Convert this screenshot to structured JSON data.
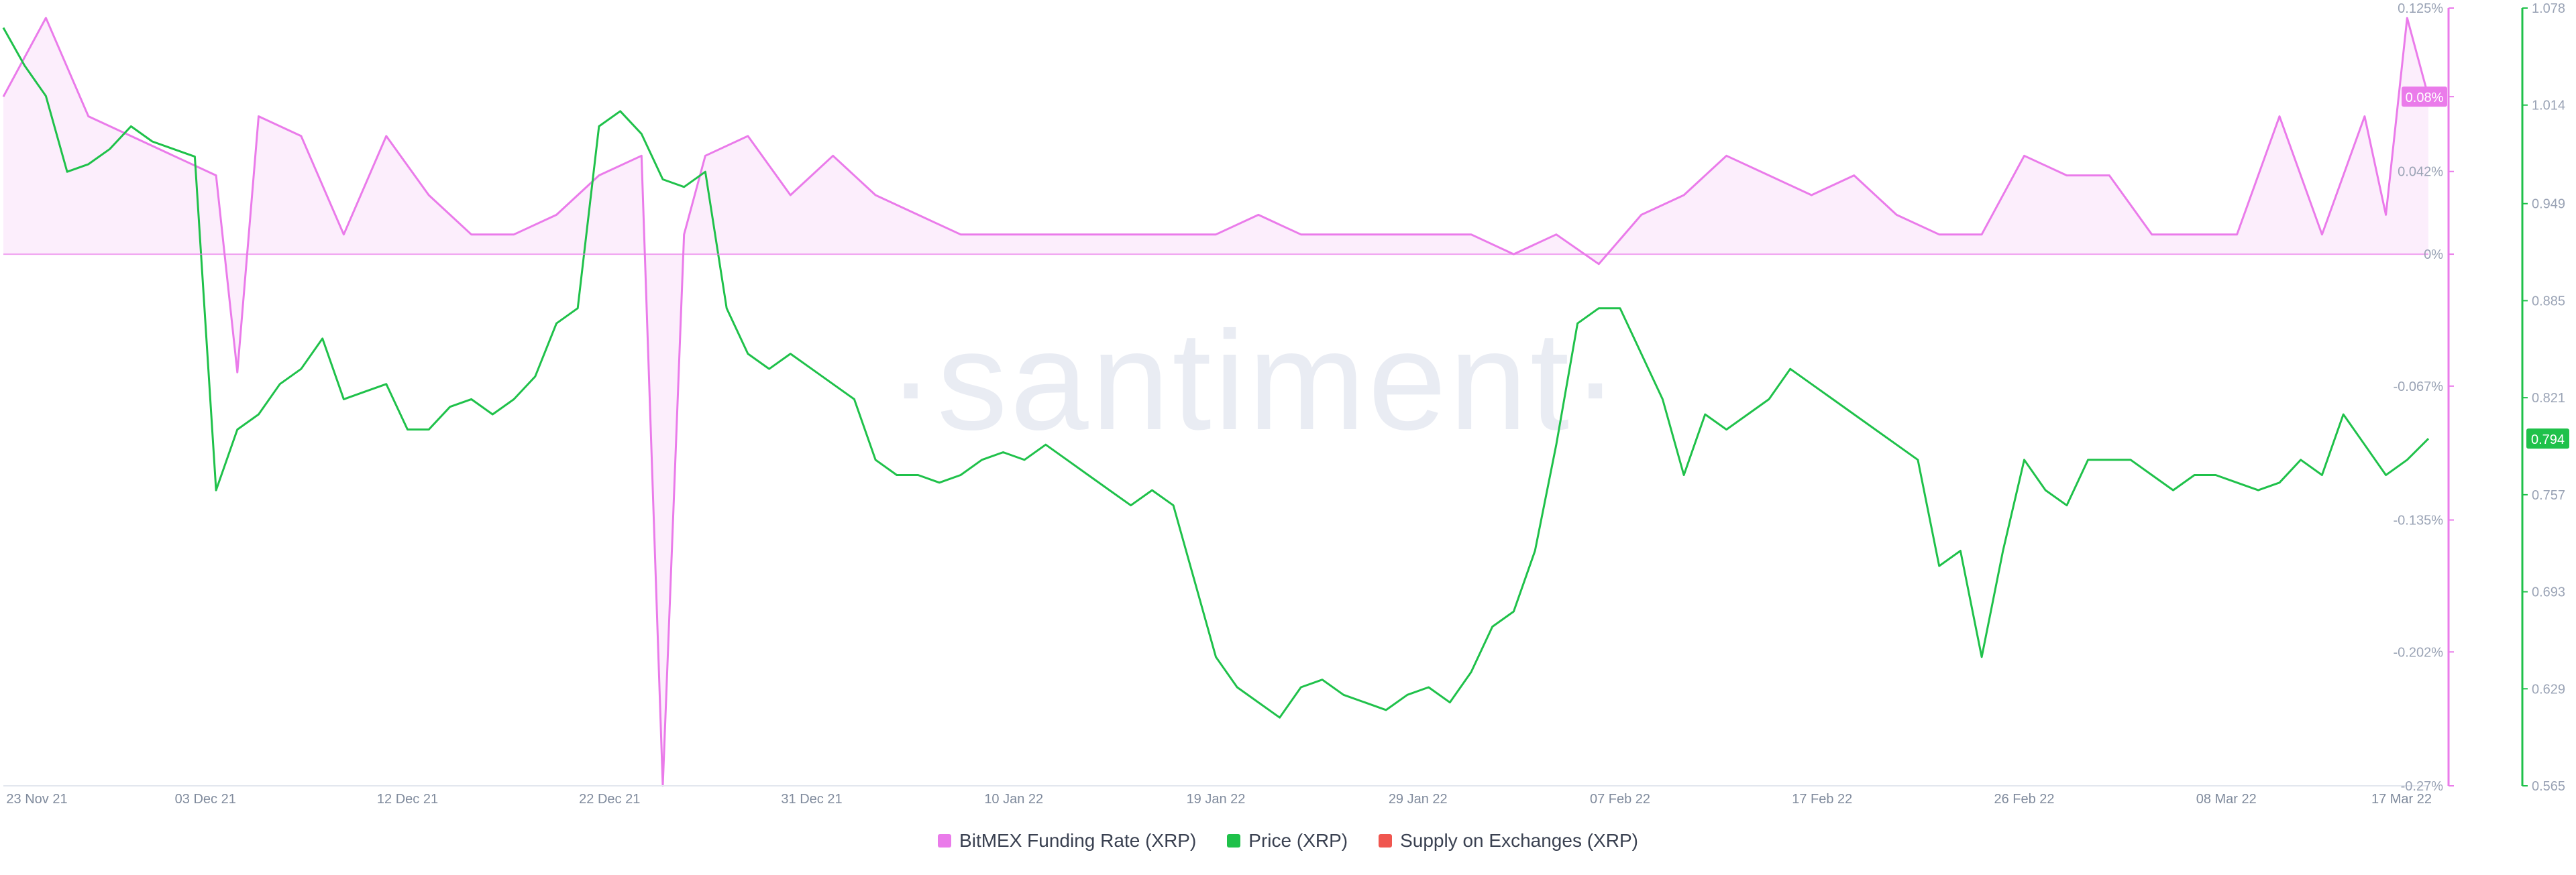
{
  "chart_data": {
    "type": "line",
    "x_tick_labels": [
      "23 Nov 21",
      "03 Dec 21",
      "12 Dec 21",
      "22 Dec 21",
      "31 Dec 21",
      "10 Jan 22",
      "19 Jan 22",
      "29 Jan 22",
      "07 Feb 22",
      "17 Feb 22",
      "26 Feb 22",
      "08 Mar 22",
      "17 Mar 22"
    ],
    "x_range": [
      "2021-11-23",
      "2022-03-17"
    ],
    "y_left": {
      "series": "BitMEX Funding Rate (XRP)",
      "ylim": [
        -0.27,
        0.125
      ],
      "tick_labels": [
        "0.125%",
        "0.08%",
        "0.042%",
        "0%",
        "-0.067%",
        "-0.135%",
        "-0.202%",
        "-0.27%"
      ],
      "color": "#ea7bea"
    },
    "y_right": {
      "series": "Price (XRP)",
      "ylim": [
        0.565,
        1.078
      ],
      "tick_labels": [
        "1.078",
        "1.014",
        "0.949",
        "0.885",
        "0.821",
        "0.757",
        "0.693",
        "0.629",
        "0.565"
      ],
      "color": "#1fc14a"
    },
    "current_values": {
      "funding_rate": "0.08%",
      "price": "0.794"
    },
    "series": [
      {
        "name": "BitMEX Funding Rate (XRP)",
        "axis": "left",
        "color": "#ea7bea",
        "style": "area",
        "x": [
          "2021-11-23",
          "2021-11-25",
          "2021-11-27",
          "2021-11-29",
          "2021-12-01",
          "2021-12-03",
          "2021-12-04",
          "2021-12-05",
          "2021-12-07",
          "2021-12-09",
          "2021-12-11",
          "2021-12-13",
          "2021-12-15",
          "2021-12-17",
          "2021-12-19",
          "2021-12-21",
          "2021-12-23",
          "2021-12-24",
          "2021-12-25",
          "2021-12-26",
          "2021-12-28",
          "2021-12-30",
          "2022-01-01",
          "2022-01-03",
          "2022-01-05",
          "2022-01-07",
          "2022-01-09",
          "2022-01-11",
          "2022-01-13",
          "2022-01-15",
          "2022-01-17",
          "2022-01-19",
          "2022-01-21",
          "2022-01-23",
          "2022-01-25",
          "2022-01-27",
          "2022-01-29",
          "2022-01-31",
          "2022-02-02",
          "2022-02-04",
          "2022-02-06",
          "2022-02-08",
          "2022-02-10",
          "2022-02-12",
          "2022-02-14",
          "2022-02-16",
          "2022-02-18",
          "2022-02-20",
          "2022-02-22",
          "2022-02-24",
          "2022-02-26",
          "2022-02-28",
          "2022-03-02",
          "2022-03-04",
          "2022-03-06",
          "2022-03-08",
          "2022-03-10",
          "2022-03-12",
          "2022-03-14",
          "2022-03-15",
          "2022-03-16",
          "2022-03-17"
        ],
        "values": [
          0.08,
          0.12,
          0.07,
          0.06,
          0.05,
          0.04,
          -0.06,
          0.07,
          0.06,
          0.01,
          0.06,
          0.03,
          0.01,
          0.01,
          0.02,
          0.04,
          0.05,
          -0.27,
          0.01,
          0.05,
          0.06,
          0.03,
          0.05,
          0.03,
          0.02,
          0.01,
          0.01,
          0.01,
          0.01,
          0.01,
          0.01,
          0.01,
          0.02,
          0.01,
          0.01,
          0.01,
          0.01,
          0.01,
          0.0,
          0.01,
          -0.005,
          0.02,
          0.03,
          0.05,
          0.04,
          0.03,
          0.04,
          0.02,
          0.01,
          0.01,
          0.05,
          0.04,
          0.04,
          0.01,
          0.01,
          0.01,
          0.07,
          0.01,
          0.07,
          0.02,
          0.12,
          0.08
        ]
      },
      {
        "name": "Price (XRP)",
        "axis": "right",
        "color": "#1fc14a",
        "style": "line",
        "x": [
          "2021-11-23",
          "2021-11-24",
          "2021-11-25",
          "2021-11-26",
          "2021-11-27",
          "2021-11-28",
          "2021-11-29",
          "2021-11-30",
          "2021-12-01",
          "2021-12-02",
          "2021-12-03",
          "2021-12-04",
          "2021-12-05",
          "2021-12-06",
          "2021-12-07",
          "2021-12-08",
          "2021-12-09",
          "2021-12-10",
          "2021-12-11",
          "2021-12-12",
          "2021-12-13",
          "2021-12-14",
          "2021-12-15",
          "2021-12-16",
          "2021-12-17",
          "2021-12-18",
          "2021-12-19",
          "2021-12-20",
          "2021-12-21",
          "2021-12-22",
          "2021-12-23",
          "2021-12-24",
          "2021-12-25",
          "2021-12-26",
          "2021-12-27",
          "2021-12-28",
          "2021-12-29",
          "2021-12-30",
          "2021-12-31",
          "2022-01-01",
          "2022-01-02",
          "2022-01-03",
          "2022-01-04",
          "2022-01-05",
          "2022-01-06",
          "2022-01-07",
          "2022-01-08",
          "2022-01-09",
          "2022-01-10",
          "2022-01-11",
          "2022-01-12",
          "2022-01-13",
          "2022-01-14",
          "2022-01-15",
          "2022-01-16",
          "2022-01-17",
          "2022-01-18",
          "2022-01-19",
          "2022-01-20",
          "2022-01-21",
          "2022-01-22",
          "2022-01-23",
          "2022-01-24",
          "2022-01-25",
          "2022-01-26",
          "2022-01-27",
          "2022-01-28",
          "2022-01-29",
          "2022-01-30",
          "2022-01-31",
          "2022-02-01",
          "2022-02-02",
          "2022-02-03",
          "2022-02-04",
          "2022-02-05",
          "2022-02-06",
          "2022-02-07",
          "2022-02-08",
          "2022-02-09",
          "2022-02-10",
          "2022-02-11",
          "2022-02-12",
          "2022-02-13",
          "2022-02-14",
          "2022-02-15",
          "2022-02-16",
          "2022-02-17",
          "2022-02-18",
          "2022-02-19",
          "2022-02-20",
          "2022-02-21",
          "2022-02-22",
          "2022-02-23",
          "2022-02-24",
          "2022-02-25",
          "2022-02-26",
          "2022-02-27",
          "2022-02-28",
          "2022-03-01",
          "2022-03-02",
          "2022-03-03",
          "2022-03-04",
          "2022-03-05",
          "2022-03-06",
          "2022-03-07",
          "2022-03-08",
          "2022-03-09",
          "2022-03-10",
          "2022-03-11",
          "2022-03-12",
          "2022-03-13",
          "2022-03-14",
          "2022-03-15",
          "2022-03-16",
          "2022-03-17"
        ],
        "values": [
          1.065,
          1.04,
          1.02,
          0.97,
          0.975,
          0.985,
          1.0,
          0.99,
          0.985,
          0.98,
          0.76,
          0.8,
          0.81,
          0.83,
          0.84,
          0.86,
          0.82,
          0.825,
          0.83,
          0.8,
          0.8,
          0.815,
          0.82,
          0.81,
          0.82,
          0.835,
          0.87,
          0.88,
          1.0,
          1.01,
          0.995,
          0.965,
          0.96,
          0.97,
          0.88,
          0.85,
          0.84,
          0.85,
          0.84,
          0.83,
          0.82,
          0.78,
          0.77,
          0.77,
          0.765,
          0.77,
          0.78,
          0.785,
          0.78,
          0.79,
          0.78,
          0.77,
          0.76,
          0.75,
          0.76,
          0.75,
          0.7,
          0.65,
          0.63,
          0.62,
          0.61,
          0.63,
          0.635,
          0.625,
          0.62,
          0.615,
          0.625,
          0.63,
          0.62,
          0.64,
          0.67,
          0.68,
          0.72,
          0.79,
          0.87,
          0.88,
          0.88,
          0.85,
          0.82,
          0.77,
          0.81,
          0.8,
          0.81,
          0.82,
          0.84,
          0.83,
          0.82,
          0.81,
          0.8,
          0.79,
          0.78,
          0.71,
          0.72,
          0.65,
          0.72,
          0.78,
          0.76,
          0.75,
          0.78,
          0.78,
          0.78,
          0.77,
          0.76,
          0.77,
          0.77,
          0.765,
          0.76,
          0.765,
          0.78,
          0.77,
          0.81,
          0.79,
          0.77,
          0.78,
          0.794
        ]
      }
    ]
  },
  "legend": {
    "items": [
      {
        "label": "BitMEX Funding Rate (XRP)",
        "color": "#ea7bea"
      },
      {
        "label": "Price (XRP)",
        "color": "#1fc14a"
      },
      {
        "label": "Supply on Exchanges (XRP)",
        "color": "#f0564f"
      }
    ]
  },
  "watermark": "·santiment·"
}
